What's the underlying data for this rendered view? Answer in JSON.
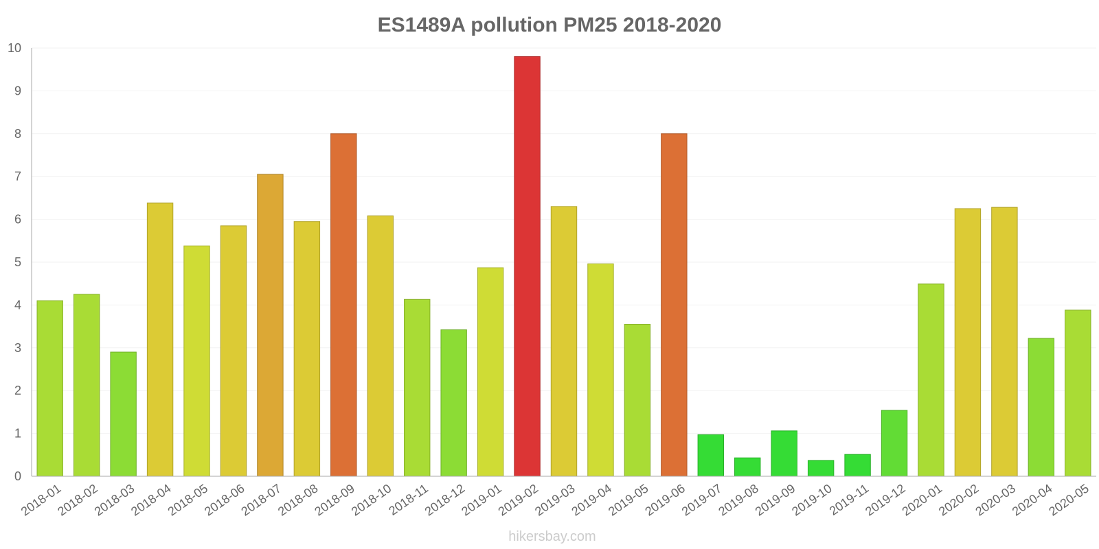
{
  "chart_data": {
    "type": "bar",
    "title": "ES1489A pollution PM25 2018-2020",
    "xlabel": "",
    "ylabel": "",
    "ylim": [
      0,
      10
    ],
    "yticks": [
      "0",
      "1",
      "2",
      "3",
      "4",
      "5",
      "6",
      "7",
      "8",
      "9",
      "10"
    ],
    "grid": true,
    "categories": [
      "2018-01",
      "2018-02",
      "2018-03",
      "2018-04",
      "2018-05",
      "2018-06",
      "2018-07",
      "2018-08",
      "2018-09",
      "2018-10",
      "2018-11",
      "2018-12",
      "2019-01",
      "2019-02",
      "2019-03",
      "2019-04",
      "2019-05",
      "2019-06",
      "2019-07",
      "2019-08",
      "2019-09",
      "2019-10",
      "2019-11",
      "2019-12",
      "2020-01",
      "2020-02",
      "2020-03",
      "2020-04",
      "2020-05"
    ],
    "values": [
      4.1,
      4.25,
      2.9,
      6.38,
      5.38,
      5.85,
      7.05,
      5.95,
      8.0,
      6.08,
      4.13,
      3.42,
      4.87,
      9.8,
      6.3,
      4.96,
      3.55,
      8.0,
      0.97,
      0.43,
      1.06,
      0.37,
      0.51,
      1.54,
      4.49,
      6.25,
      6.28,
      3.22,
      3.88
    ],
    "bar_colors": [
      "#a9dc35",
      "#a9dc35",
      "#8cdc35",
      "#dccb35",
      "#cfdc35",
      "#dccb35",
      "#dca835",
      "#dccb35",
      "#dc7035",
      "#dccb35",
      "#a9dc35",
      "#8cdc35",
      "#cfdc35",
      "#dc3535",
      "#dccb35",
      "#cfdc35",
      "#a9dc35",
      "#dc7035",
      "#35dc35",
      "#35dc35",
      "#35dc35",
      "#35dc35",
      "#35dc35",
      "#62dc35",
      "#a9dc35",
      "#dccb35",
      "#dccb35",
      "#8cdc35",
      "#a9dc35"
    ]
  },
  "watermark": "hikersbay.com",
  "colors": {
    "title": "#666666",
    "tick": "#666666",
    "grid": "#f2f2f2",
    "axis": "#aaaaaa",
    "watermark": "#cccccc"
  }
}
